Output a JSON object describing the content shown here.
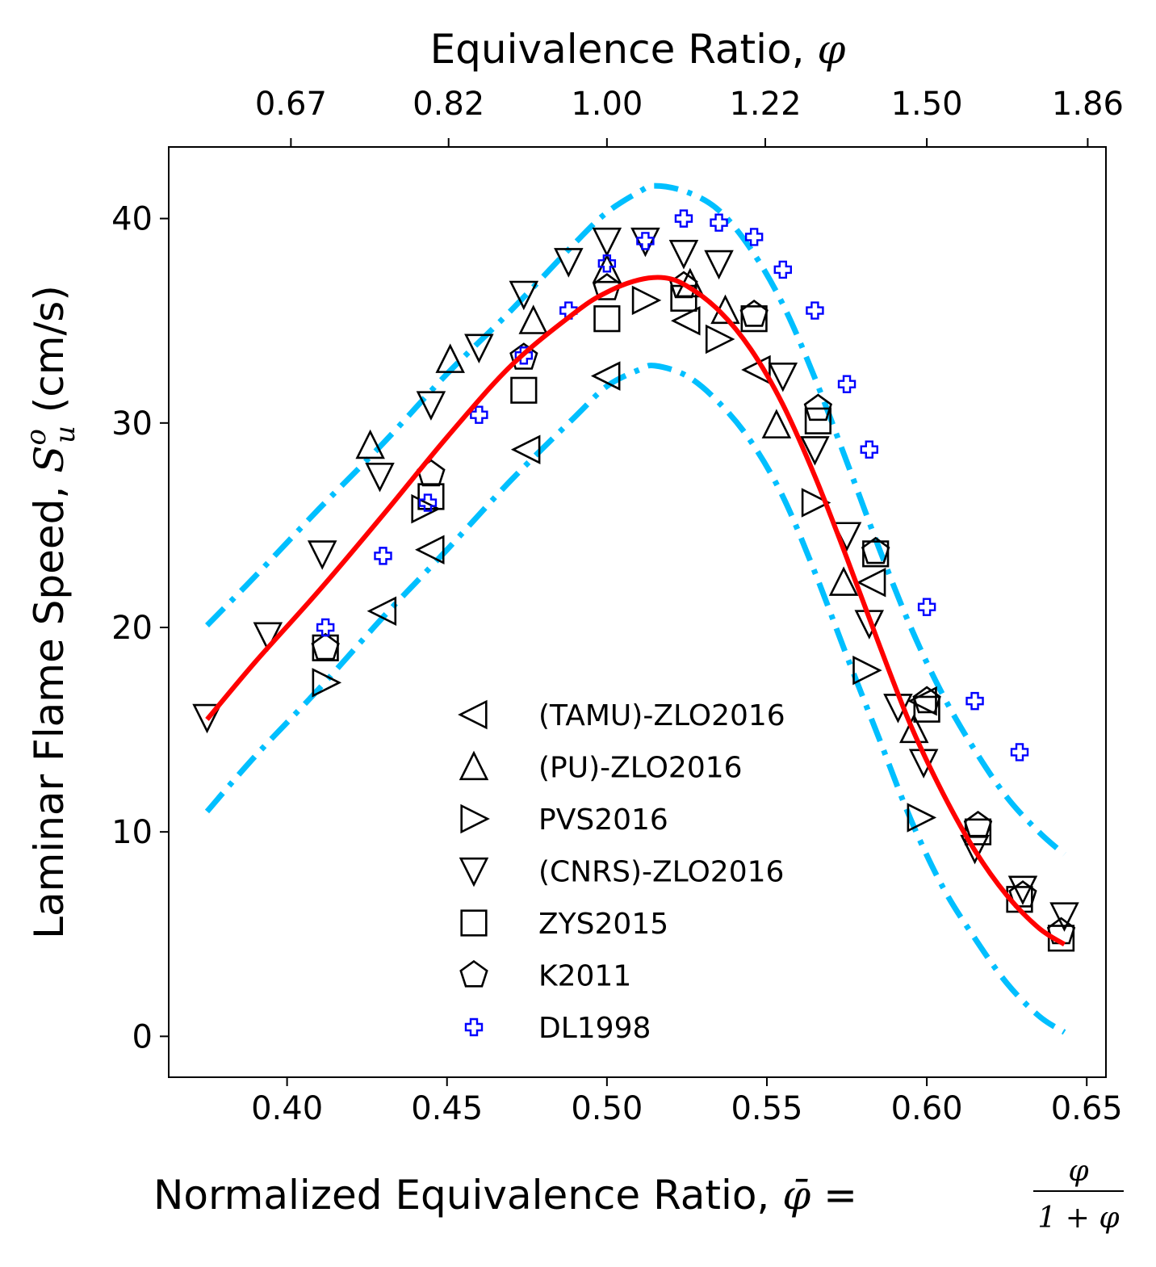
{
  "chart_data": {
    "type": "scatter",
    "title": "",
    "xlabel": "Normalized Equivalence Ratio, ",
    "xlabel_math": {
      "symbol": "φ̄",
      "eq": " = ",
      "num": "φ",
      "den": "1 + φ"
    },
    "ylabel": "Laminar Flame Speed, ",
    "ylabel_math": {
      "base": "S",
      "sup": "o",
      "sub": "u",
      "unit": " (cm/s)"
    },
    "top_xlabel": "Equivalence Ratio, ",
    "top_xlabel_symbol": "φ",
    "xlim": [
      0.363,
      0.656
    ],
    "ylim": [
      -2,
      43.5
    ],
    "x_ticks": [
      0.4,
      0.45,
      0.5,
      0.55,
      0.6,
      0.65
    ],
    "x_tick_labels": [
      "0.40",
      "0.45",
      "0.50",
      "0.55",
      "0.60",
      "0.65"
    ],
    "y_ticks": [
      0,
      10,
      20,
      30,
      40
    ],
    "y_tick_labels": [
      "0",
      "10",
      "20",
      "30",
      "40"
    ],
    "top_ticks_phibar": [
      0.4012,
      0.4505,
      0.5,
      0.5495,
      0.6,
      0.6503
    ],
    "top_tick_labels": [
      "0.67",
      "0.82",
      "1.00",
      "1.22",
      "1.50",
      "1.86"
    ],
    "legend_position": "lower center",
    "series": [
      {
        "name": "(TAMU)-ZLO2016",
        "marker": "triangle-left",
        "color": "#000000",
        "x": [
          0.43,
          0.445,
          0.475,
          0.5,
          0.525,
          0.547,
          0.583,
          0.599
        ],
        "y": [
          20.8,
          23.8,
          28.7,
          32.3,
          35.0,
          32.6,
          22.2,
          16.4
        ]
      },
      {
        "name": "(PU)-ZLO2016",
        "marker": "triangle-up",
        "color": "#000000",
        "x": [
          0.426,
          0.451,
          0.477,
          0.5,
          0.526,
          0.537,
          0.553,
          0.574,
          0.596
        ],
        "y": [
          28.9,
          33.1,
          35.0,
          37.5,
          36.8,
          35.5,
          29.9,
          22.2,
          15.0
        ]
      },
      {
        "name": "PVS2016",
        "marker": "triangle-right",
        "color": "#000000",
        "x": [
          0.412,
          0.443,
          0.512,
          0.535,
          0.565,
          0.581,
          0.598
        ],
        "y": [
          17.3,
          25.8,
          36.0,
          34.1,
          26.1,
          17.9,
          10.7
        ]
      },
      {
        "name": "(CNRS)-ZLO2016",
        "marker": "triangle-down",
        "color": "#000000",
        "x": [
          0.375,
          0.394,
          0.411,
          0.429,
          0.445,
          0.46,
          0.474,
          0.488,
          0.5,
          0.512,
          0.524,
          0.535,
          0.555,
          0.565,
          0.575,
          0.582,
          0.591,
          0.599,
          0.615,
          0.63,
          0.643
        ],
        "y": [
          15.6,
          19.6,
          23.6,
          27.4,
          30.9,
          33.7,
          36.3,
          37.9,
          38.9,
          38.9,
          38.3,
          37.8,
          32.3,
          28.7,
          24.5,
          20.2,
          16.1,
          13.4,
          9.2,
          7.2,
          5.9
        ]
      },
      {
        "name": "ZYS2015",
        "marker": "square",
        "color": "#000000",
        "x": [
          0.412,
          0.445,
          0.474,
          0.5,
          0.524,
          0.546,
          0.566,
          0.584,
          0.6,
          0.616,
          0.629,
          0.642
        ],
        "y": [
          19.0,
          26.4,
          31.6,
          35.1,
          36.1,
          35.1,
          30.1,
          23.6,
          16.0,
          10.0,
          6.7,
          4.8
        ]
      },
      {
        "name": "K2011",
        "marker": "pentagon",
        "color": "#000000",
        "x": [
          0.412,
          0.445,
          0.474,
          0.5,
          0.524,
          0.546,
          0.566,
          0.584,
          0.6,
          0.616,
          0.63,
          0.642
        ],
        "y": [
          19.0,
          27.5,
          33.2,
          36.6,
          36.7,
          35.3,
          30.7,
          23.7,
          16.4,
          10.3,
          6.9,
          5.1
        ]
      },
      {
        "name": "DL1998",
        "marker": "plus",
        "color": "#0000ff",
        "x": [
          0.412,
          0.43,
          0.444,
          0.46,
          0.474,
          0.488,
          0.5,
          0.512,
          0.524,
          0.535,
          0.546,
          0.555,
          0.565,
          0.575,
          0.582,
          0.6,
          0.615,
          0.629
        ],
        "y": [
          20.0,
          23.5,
          26.1,
          30.4,
          33.3,
          35.5,
          37.8,
          38.9,
          40.0,
          39.8,
          39.1,
          37.5,
          35.5,
          31.9,
          28.7,
          21.0,
          16.4,
          13.9
        ]
      }
    ],
    "fit_line": {
      "name": "fit",
      "color": "#ff0000",
      "x": [
        0.375,
        0.39,
        0.41,
        0.43,
        0.45,
        0.47,
        0.49,
        0.5,
        0.51,
        0.518,
        0.525,
        0.535,
        0.545,
        0.555,
        0.565,
        0.575,
        0.585,
        0.595,
        0.605,
        0.615,
        0.625,
        0.635,
        0.643
      ],
      "y": [
        15.5,
        18.3,
        21.8,
        25.5,
        29.3,
        32.8,
        35.4,
        36.4,
        37.0,
        37.1,
        36.7,
        35.5,
        33.6,
        30.9,
        27.4,
        23.4,
        19.2,
        15.2,
        11.9,
        9.1,
        6.9,
        5.3,
        4.5
      ]
    },
    "upper_bound": {
      "name": "upper bound",
      "color": "#00bfff",
      "x": [
        0.375,
        0.39,
        0.41,
        0.43,
        0.45,
        0.47,
        0.49,
        0.5,
        0.51,
        0.515,
        0.525,
        0.535,
        0.545,
        0.555,
        0.565,
        0.575,
        0.585,
        0.595,
        0.605,
        0.615,
        0.625,
        0.635,
        0.643
      ],
      "y": [
        20.1,
        22.5,
        25.8,
        29.0,
        32.4,
        35.5,
        38.8,
        40.3,
        41.3,
        41.6,
        41.3,
        40.4,
        38.5,
        35.8,
        32.2,
        28.1,
        23.9,
        20.0,
        16.7,
        14.0,
        11.7,
        10.0,
        8.9
      ]
    },
    "lower_bound": {
      "name": "lower bound",
      "color": "#00bfff",
      "x": [
        0.375,
        0.39,
        0.41,
        0.43,
        0.45,
        0.47,
        0.49,
        0.5,
        0.51,
        0.515,
        0.525,
        0.535,
        0.545,
        0.555,
        0.565,
        0.575,
        0.585,
        0.595,
        0.605,
        0.615,
        0.625,
        0.635,
        0.643
      ],
      "y": [
        11.0,
        13.7,
        17.0,
        20.5,
        23.8,
        27.2,
        30.3,
        31.8,
        32.6,
        32.8,
        32.3,
        31.0,
        29.1,
        26.4,
        22.7,
        18.6,
        14.6,
        10.6,
        7.3,
        4.8,
        2.6,
        1.0,
        0.2
      ]
    }
  }
}
